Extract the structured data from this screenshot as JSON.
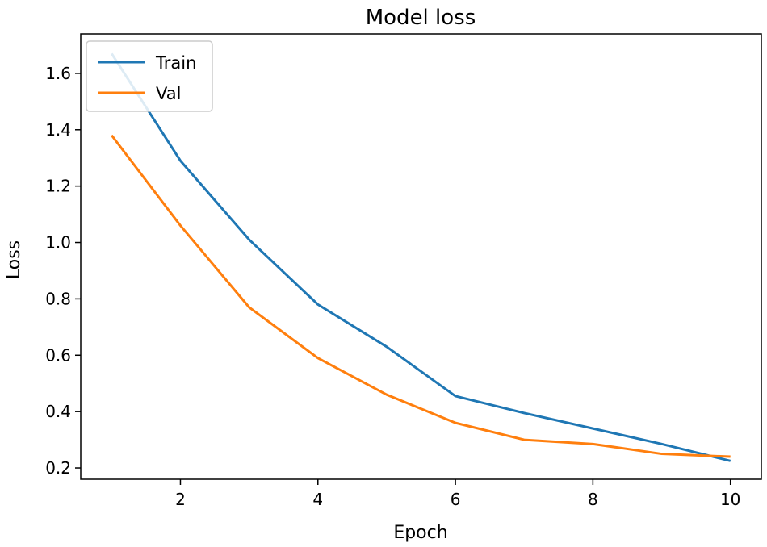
{
  "chart_data": {
    "type": "line",
    "title": "Model loss",
    "xlabel": "Epoch",
    "ylabel": "Loss",
    "xlim": [
      0.55,
      10.45
    ],
    "ylim": [
      0.16,
      1.74
    ],
    "xticks": [
      2,
      4,
      6,
      8,
      10
    ],
    "yticks": [
      0.2,
      0.4,
      0.6,
      0.8,
      1.0,
      1.2,
      1.4,
      1.6
    ],
    "ytick_labels": [
      "0.2",
      "0.4",
      "0.6",
      "0.8",
      "1.0",
      "1.2",
      "1.4",
      "1.6"
    ],
    "grid": false,
    "legend_position": "top-left",
    "x": [
      1,
      2,
      3,
      4,
      5,
      6,
      7,
      8,
      9,
      10
    ],
    "series": [
      {
        "name": "Train",
        "color": "#1f77b4",
        "values": [
          1.67,
          1.29,
          1.01,
          0.78,
          0.63,
          0.455,
          0.395,
          0.34,
          0.285,
          0.225
        ]
      },
      {
        "name": "Val",
        "color": "#ff7f0e",
        "values": [
          1.38,
          1.06,
          0.77,
          0.59,
          0.46,
          0.36,
          0.3,
          0.285,
          0.25,
          0.24
        ]
      }
    ]
  }
}
